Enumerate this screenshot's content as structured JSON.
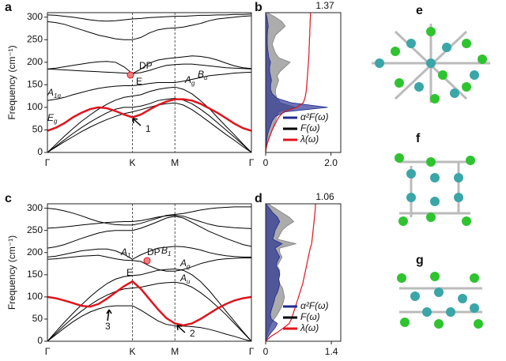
{
  "chart_data": [
    {
      "type": "line",
      "label": "a",
      "y_label": "Frequency (cm⁻¹)",
      "categories": [
        "Γ",
        null,
        null,
        null,
        null,
        null,
        null,
        null,
        null,
        null,
        "K",
        null,
        null,
        null,
        null,
        "M",
        null,
        null,
        null,
        null,
        null,
        null,
        null,
        null,
        "Γ"
      ],
      "ylim": [
        0,
        310
      ],
      "yticks": [
        0,
        50,
        100,
        150,
        200,
        250,
        300
      ],
      "series": [
        {
          "color": "#000000",
          "values": [
            0,
            12,
            24,
            35,
            46,
            56,
            65,
            73,
            80,
            86,
            90,
            95,
            100,
            105,
            108,
            110,
            105,
            95,
            82,
            68,
            54,
            40,
            27,
            13,
            0
          ]
        },
        {
          "color": "#000000",
          "values": [
            0,
            14,
            28,
            42,
            55,
            67,
            78,
            88,
            96,
            100,
            100,
            103,
            108,
            115,
            118,
            120,
            116,
            108,
            96,
            82,
            66,
            50,
            34,
            17,
            0
          ]
        },
        {
          "color": "#000000",
          "values": [
            0,
            18,
            36,
            53,
            69,
            83,
            96,
            107,
            116,
            122,
            125,
            128,
            135,
            140,
            143,
            145,
            140,
            130,
            115,
            98,
            78,
            58,
            39,
            19,
            0
          ]
        },
        {
          "color": "#000000",
          "values": [
            115,
            118,
            122,
            128,
            133,
            138,
            142,
            145,
            147,
            148,
            148,
            150,
            153,
            155,
            155,
            155,
            158,
            162,
            166,
            170,
            172,
            174,
            176,
            177,
            178
          ]
        },
        {
          "color": "#000000",
          "values": [
            185,
            184,
            183,
            182,
            181,
            180,
            179,
            178,
            177,
            176,
            175,
            177,
            182,
            188,
            193,
            195,
            196,
            196,
            194,
            192,
            190,
            188,
            187,
            186,
            185
          ]
        },
        {
          "color": "#000000",
          "values": [
            185,
            187,
            190,
            193,
            196,
            199,
            201,
            202,
            200,
            190,
            175,
            185,
            198,
            205,
            208,
            210,
            212,
            214,
            213,
            210,
            205,
            198,
            192,
            188,
            186
          ]
        },
        {
          "color": "#000000",
          "values": [
            290,
            288,
            284,
            278,
            272,
            266,
            260,
            256,
            252,
            250,
            250,
            255,
            265,
            272,
            275,
            276,
            278,
            282,
            286,
            292,
            296,
            298,
            300,
            302,
            303
          ]
        },
        {
          "color": "#000000",
          "values": [
            305,
            304,
            302,
            300,
            297,
            294,
            292,
            291,
            292,
            294,
            296,
            297,
            299,
            300,
            301,
            302,
            302,
            303,
            304,
            304,
            305,
            305,
            306,
            306,
            307
          ]
        },
        {
          "color": "#e0141e",
          "values": [
            48,
            55,
            65,
            78,
            88,
            96,
            100,
            98,
            92,
            84,
            78,
            84,
            95,
            105,
            113,
            118,
            118,
            115,
            108,
            98,
            88,
            76,
            64,
            54,
            48
          ]
        }
      ],
      "annotations": [
        {
          "main": "DP"
        },
        {
          "main": "E"
        },
        {
          "main": "A",
          "sub": "1g"
        },
        {
          "main": "A",
          "sub": "g"
        },
        {
          "main": "B",
          "sub": "u"
        },
        {
          "main": "E",
          "sub": "g"
        },
        {
          "main": "1"
        }
      ]
    },
    {
      "type": "dos",
      "label": "b",
      "top_label": "1.37",
      "frequencies": [
        0,
        10,
        20,
        30,
        40,
        50,
        60,
        70,
        80,
        90,
        100,
        110,
        120,
        130,
        140,
        150,
        160,
        170,
        180,
        190,
        200,
        210,
        220,
        230,
        240,
        250,
        260,
        270,
        280,
        290,
        300,
        310
      ],
      "xlim": [
        0,
        2.3
      ],
      "xticks": [
        0,
        {
          "value": 2,
          "label": "2.0"
        }
      ],
      "ylim": [
        0,
        310
      ],
      "series": [
        {
          "name": "F(ω)",
          "color": "#7f7f7f",
          "style": "area",
          "values": [
            0,
            0.02,
            0.05,
            0.1,
            0.15,
            0.2,
            0.25,
            0.3,
            0.35,
            0.4,
            0.9,
            0.45,
            0.35,
            0.3,
            0.3,
            0.35,
            0.4,
            0.35,
            0.45,
            0.6,
            0.75,
            0.4,
            0.3,
            0.25,
            0.2,
            0.25,
            0.3,
            0.45,
            0.6,
            0.5,
            0.3,
            0.05
          ]
        },
        {
          "name": "α²F(ω)",
          "color": "#1f2a8f",
          "style": "area",
          "values": [
            0,
            0.01,
            0.02,
            0.04,
            0.06,
            0.1,
            0.15,
            0.2,
            0.3,
            0.6,
            1.9,
            0.8,
            0.35,
            0.2,
            0.15,
            0.15,
            0.18,
            0.15,
            0.12,
            0.12,
            0.15,
            0.1,
            0.08,
            0.06,
            0.05,
            0.05,
            0.05,
            0.06,
            0.08,
            0.06,
            0.04,
            0
          ]
        },
        {
          "name": "λ(ω)",
          "color": "#e0141e",
          "style": "line",
          "values": [
            0,
            0.02,
            0.05,
            0.1,
            0.15,
            0.2,
            0.27,
            0.34,
            0.42,
            0.55,
            0.95,
            1.15,
            1.2,
            1.23,
            1.25,
            1.26,
            1.27,
            1.28,
            1.29,
            1.3,
            1.31,
            1.32,
            1.33,
            1.33,
            1.34,
            1.34,
            1.35,
            1.35,
            1.36,
            1.36,
            1.37,
            1.37
          ]
        }
      ]
    },
    {
      "type": "line",
      "label": "c",
      "y_label": "Frequency (cm⁻¹)",
      "categories": [
        "Γ",
        null,
        null,
        null,
        null,
        null,
        null,
        null,
        null,
        null,
        "K",
        null,
        null,
        null,
        null,
        "M",
        null,
        null,
        null,
        null,
        null,
        null,
        null,
        null,
        "Γ"
      ],
      "ylim": [
        0,
        310
      ],
      "yticks": [
        0,
        50,
        100,
        150,
        200,
        250,
        300
      ],
      "series": [
        {
          "color": "#000000",
          "values": [
            0,
            15,
            30,
            44,
            56,
            66,
            73,
            78,
            80,
            80,
            80,
            70,
            58,
            46,
            38,
            35,
            34,
            33,
            31,
            27,
            22,
            16,
            11,
            5,
            0
          ]
        },
        {
          "color": "#000000",
          "values": [
            0,
            18,
            36,
            53,
            68,
            82,
            94,
            104,
            112,
            118,
            120,
            122,
            126,
            130,
            132,
            133,
            130,
            122,
            110,
            95,
            78,
            60,
            40,
            20,
            0
          ]
        },
        {
          "color": "#000000",
          "values": [
            0,
            22,
            43,
            63,
            82,
            100,
            116,
            130,
            140,
            146,
            148,
            150,
            155,
            160,
            162,
            163,
            160,
            150,
            135,
            115,
            92,
            68,
            45,
            22,
            0
          ]
        },
        {
          "color": "#000000",
          "values": [
            185,
            186,
            188,
            190,
            192,
            193,
            194,
            190,
            186,
            183,
            182,
            180,
            170,
            162,
            158,
            158,
            162,
            168,
            175,
            180,
            184,
            186,
            187,
            188,
            188
          ]
        },
        {
          "color": "#000000",
          "values": [
            190,
            192,
            196,
            200,
            204,
            206,
            208,
            208,
            204,
            196,
            185,
            195,
            203,
            210,
            212,
            214,
            213,
            210,
            206,
            200,
            196,
            193,
            191,
            190,
            190
          ]
        },
        {
          "color": "#000000",
          "values": [
            210,
            213,
            218,
            225,
            232,
            238,
            244,
            248,
            250,
            250,
            250,
            255,
            262,
            270,
            278,
            282,
            278,
            268,
            258,
            248,
            240,
            232,
            225,
            218,
            214
          ]
        },
        {
          "color": "#000000",
          "values": [
            255,
            256,
            258,
            260,
            262,
            264,
            266,
            268,
            269,
            270,
            270,
            272,
            276,
            280,
            283,
            284,
            282,
            276,
            270,
            264,
            260,
            258,
            256,
            255,
            254
          ]
        },
        {
          "color": "#000000",
          "values": [
            300,
            298,
            294,
            289,
            283,
            276,
            270,
            266,
            263,
            262,
            262,
            266,
            272,
            278,
            284,
            286,
            288,
            292,
            296,
            299,
            301,
            302,
            303,
            303,
            303
          ]
        },
        {
          "color": "#e0141e",
          "values": [
            100,
            97,
            92,
            86,
            80,
            78,
            84,
            96,
            110,
            124,
            135,
            118,
            95,
            72,
            52,
            40,
            36,
            40,
            50,
            62,
            74,
            84,
            92,
            97,
            100
          ]
        }
      ],
      "annotations": [
        {
          "main": "DP"
        },
        {
          "main": "E"
        },
        {
          "main": "A",
          "sub": "1"
        },
        {
          "main": "B",
          "sub": "1"
        },
        {
          "main": "A",
          "sub": "g"
        },
        {
          "main": "A",
          "sub": "u"
        },
        {
          "main": "3"
        },
        {
          "main": "2"
        }
      ]
    },
    {
      "type": "dos",
      "label": "d",
      "top_label": "1.06",
      "frequencies": [
        0,
        10,
        20,
        30,
        40,
        50,
        60,
        70,
        80,
        90,
        100,
        110,
        120,
        130,
        140,
        150,
        160,
        170,
        180,
        190,
        200,
        210,
        220,
        230,
        240,
        250,
        260,
        270,
        280,
        290,
        300,
        310
      ],
      "xlim": [
        0,
        1.6
      ],
      "xticks": [
        0,
        1.4
      ],
      "ylim": [
        0,
        310
      ],
      "series": [
        {
          "name": "F(ω)",
          "color": "#7f7f7f",
          "style": "area",
          "values": [
            0,
            0.02,
            0.05,
            0.08,
            0.12,
            0.18,
            0.25,
            0.3,
            0.35,
            0.38,
            0.4,
            0.38,
            0.36,
            0.3,
            0.28,
            0.3,
            0.3,
            0.25,
            0.3,
            0.35,
            0.3,
            0.3,
            0.65,
            0.25,
            0.3,
            0.35,
            0.45,
            0.6,
            0.5,
            0.35,
            0.2,
            0.05
          ]
        },
        {
          "name": "α²F(ω)",
          "color": "#1f2a8f",
          "style": "area",
          "values": [
            0,
            0.05,
            0.12,
            0.2,
            0.25,
            0.12,
            0.1,
            0.12,
            0.15,
            0.18,
            0.2,
            0.25,
            0.28,
            0.3,
            0.28,
            0.3,
            0.28,
            0.22,
            0.25,
            0.3,
            0.25,
            0.2,
            0.35,
            0.15,
            0.18,
            0.2,
            0.25,
            0.3,
            0.25,
            0.15,
            0.08,
            0
          ]
        },
        {
          "name": "λ(ω)",
          "color": "#e0141e",
          "style": "line",
          "values": [
            0,
            0.1,
            0.25,
            0.38,
            0.5,
            0.55,
            0.58,
            0.61,
            0.64,
            0.67,
            0.7,
            0.73,
            0.76,
            0.79,
            0.81,
            0.83,
            0.85,
            0.87,
            0.89,
            0.91,
            0.93,
            0.95,
            0.98,
            0.99,
            1.0,
            1.01,
            1.02,
            1.03,
            1.04,
            1.05,
            1.06,
            1.06
          ]
        }
      ]
    }
  ],
  "structures": [
    {
      "label": "e"
    },
    {
      "label": "f"
    },
    {
      "label": "g"
    }
  ]
}
